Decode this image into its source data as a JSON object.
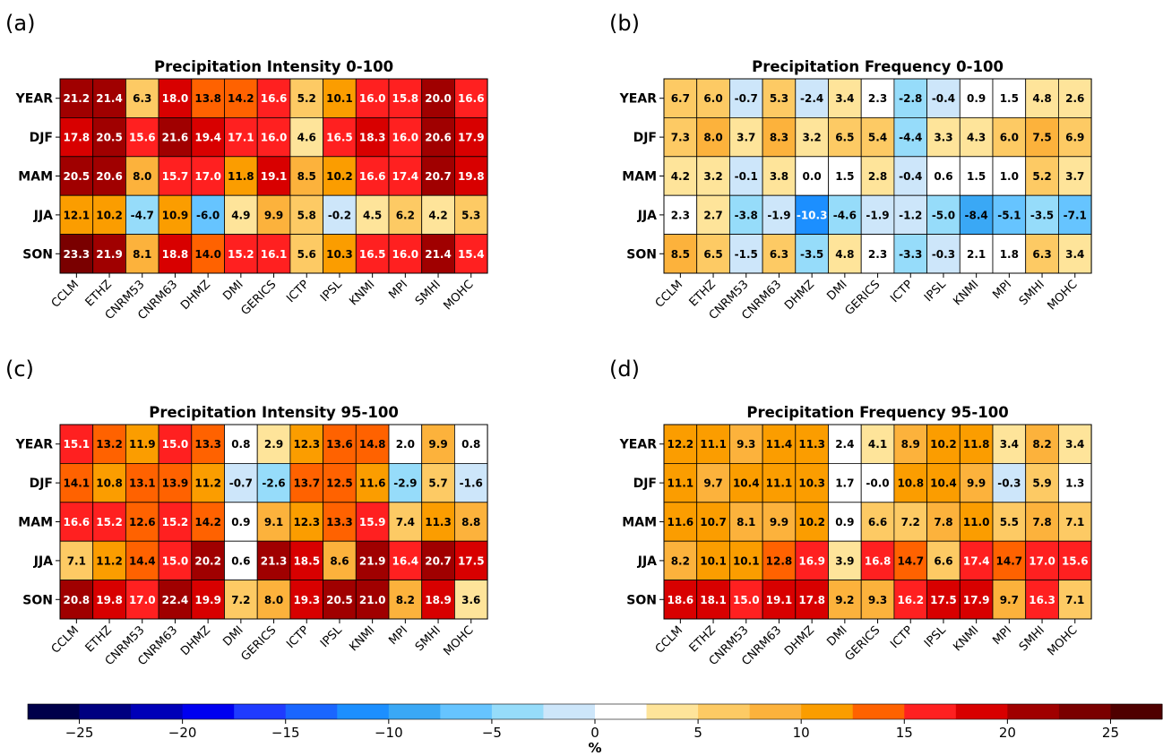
{
  "chart_data": [
    {
      "type": "heatmap",
      "panel_label": "(a)",
      "title": "Precipitation Intensity 0-100",
      "rows": [
        "YEAR",
        "DJF",
        "MAM",
        "JJA",
        "SON"
      ],
      "columns": [
        "CCLM",
        "ETHZ",
        "CNRM53",
        "CNRM63",
        "DHMZ",
        "DMI",
        "GERICS",
        "ICTP",
        "IPSL",
        "KNMI",
        "MPI",
        "SMHI",
        "MOHC"
      ],
      "values": [
        [
          "21.2",
          "21.4",
          "6.3",
          "18.0",
          "13.8",
          "14.2",
          "16.6",
          "5.2",
          "10.1",
          "16.0",
          "15.8",
          "20.0",
          "16.6"
        ],
        [
          "17.8",
          "20.5",
          "15.6",
          "21.6",
          "19.4",
          "17.1",
          "16.0",
          "4.6",
          "16.5",
          "18.3",
          "16.0",
          "20.6",
          "17.9"
        ],
        [
          "20.5",
          "20.6",
          "8.0",
          "15.7",
          "17.0",
          "11.8",
          "19.1",
          "8.5",
          "10.2",
          "16.6",
          "17.4",
          "20.7",
          "19.8"
        ],
        [
          "12.1",
          "10.2",
          "-4.7",
          "10.9",
          "-6.0",
          "4.9",
          "9.9",
          "5.8",
          "-0.2",
          "4.5",
          "6.2",
          "4.2",
          "5.3"
        ],
        [
          "23.3",
          "21.9",
          "8.1",
          "18.8",
          "14.0",
          "15.2",
          "16.1",
          "5.6",
          "10.3",
          "16.5",
          "16.0",
          "21.4",
          "15.4"
        ]
      ]
    },
    {
      "type": "heatmap",
      "panel_label": "(b)",
      "title": "Precipitation Frequency 0-100",
      "rows": [
        "YEAR",
        "DJF",
        "MAM",
        "JJA",
        "SON"
      ],
      "columns": [
        "CCLM",
        "ETHZ",
        "CNRM53",
        "CNRM63",
        "DHMZ",
        "DMI",
        "GERICS",
        "ICTP",
        "IPSL",
        "KNMI",
        "MPI",
        "SMHI",
        "MOHC"
      ],
      "values": [
        [
          "6.7",
          "6.0",
          "-0.7",
          "5.3",
          "-2.4",
          "3.4",
          "2.3",
          "-2.8",
          "-0.4",
          "0.9",
          "1.5",
          "4.8",
          "2.6"
        ],
        [
          "7.3",
          "8.0",
          "3.7",
          "8.3",
          "3.2",
          "6.5",
          "5.4",
          "-4.4",
          "3.3",
          "4.3",
          "6.0",
          "7.5",
          "6.9"
        ],
        [
          "4.2",
          "3.2",
          "-0.1",
          "3.8",
          "0.0",
          "1.5",
          "2.8",
          "-0.4",
          "0.6",
          "1.5",
          "1.0",
          "5.2",
          "3.7"
        ],
        [
          "2.3",
          "2.7",
          "-3.8",
          "-1.9",
          "-10.3",
          "-4.6",
          "-1.9",
          "-1.2",
          "-5.0",
          "-8.4",
          "-5.1",
          "-3.5",
          "-7.1"
        ],
        [
          "8.5",
          "6.5",
          "-1.5",
          "6.3",
          "-3.5",
          "4.8",
          "2.3",
          "-3.3",
          "-0.3",
          "2.1",
          "1.8",
          "6.3",
          "3.4"
        ]
      ]
    },
    {
      "type": "heatmap",
      "panel_label": "(c)",
      "title": "Precipitation Intensity 95-100",
      "rows": [
        "YEAR",
        "DJF",
        "MAM",
        "JJA",
        "SON"
      ],
      "columns": [
        "CCLM",
        "ETHZ",
        "CNRM53",
        "CNRM63",
        "DHMZ",
        "DMI",
        "GERICS",
        "ICTP",
        "IPSL",
        "KNMI",
        "MPI",
        "SMHI",
        "MOHC"
      ],
      "values": [
        [
          "15.1",
          "13.2",
          "11.9",
          "15.0",
          "13.3",
          "0.8",
          "2.9",
          "12.3",
          "13.6",
          "14.8",
          "2.0",
          "9.9",
          "0.8"
        ],
        [
          "14.1",
          "10.8",
          "13.1",
          "13.9",
          "11.2",
          "-0.7",
          "-2.6",
          "13.7",
          "12.5",
          "11.6",
          "-2.9",
          "5.7",
          "-1.6"
        ],
        [
          "16.6",
          "15.2",
          "12.6",
          "15.2",
          "14.2",
          "0.9",
          "9.1",
          "12.3",
          "13.3",
          "15.9",
          "7.4",
          "11.3",
          "8.8"
        ],
        [
          "7.1",
          "11.2",
          "14.4",
          "15.0",
          "20.2",
          "0.6",
          "21.3",
          "18.5",
          "8.6",
          "21.9",
          "16.4",
          "20.7",
          "17.5"
        ],
        [
          "20.8",
          "19.8",
          "17.0",
          "22.4",
          "19.9",
          "7.2",
          "8.0",
          "19.3",
          "20.5",
          "21.0",
          "8.2",
          "18.9",
          "3.6"
        ]
      ]
    },
    {
      "type": "heatmap",
      "panel_label": "(d)",
      "title": "Precipitation Frequency 95-100",
      "rows": [
        "YEAR",
        "DJF",
        "MAM",
        "JJA",
        "SON"
      ],
      "columns": [
        "CCLM",
        "ETHZ",
        "CNRM53",
        "CNRM63",
        "DHMZ",
        "DMI",
        "GERICS",
        "ICTP",
        "IPSL",
        "KNMI",
        "MPI",
        "SMHI",
        "MOHC"
      ],
      "values": [
        [
          "12.2",
          "11.1",
          "9.3",
          "11.4",
          "11.3",
          "2.4",
          "4.1",
          "8.9",
          "10.2",
          "11.8",
          "3.4",
          "8.2",
          "3.4"
        ],
        [
          "11.1",
          "9.7",
          "10.4",
          "11.1",
          "10.3",
          "1.7",
          "-0.0",
          "10.8",
          "10.4",
          "9.9",
          "-0.3",
          "5.9",
          "1.3"
        ],
        [
          "11.6",
          "10.7",
          "8.1",
          "9.9",
          "10.2",
          "0.9",
          "6.6",
          "7.2",
          "7.8",
          "11.0",
          "5.5",
          "7.8",
          "7.1"
        ],
        [
          "8.2",
          "10.1",
          "10.1",
          "12.8",
          "16.9",
          "3.9",
          "16.8",
          "14.7",
          "6.6",
          "17.4",
          "14.7",
          "17.0",
          "15.6"
        ],
        [
          "18.6",
          "18.1",
          "15.0",
          "19.1",
          "17.8",
          "9.2",
          "9.3",
          "16.2",
          "17.5",
          "17.9",
          "9.7",
          "16.3",
          "7.1"
        ]
      ]
    }
  ],
  "colorbar": {
    "label": "%",
    "range": [
      -27.5,
      27.5
    ],
    "step": 2.5,
    "ticks": [
      "−25",
      "−20",
      "−15",
      "−10",
      "−5",
      "0",
      "5",
      "10",
      "15",
      "20",
      "25"
    ],
    "tick_values": [
      -25,
      -20,
      -15,
      -10,
      -5,
      0,
      5,
      10,
      15,
      20,
      25
    ],
    "colors": [
      "#00004a",
      "#000080",
      "#0000b8",
      "#0000f0",
      "#1f3bff",
      "#1a66ff",
      "#1c8fff",
      "#3aa8f5",
      "#66c4ff",
      "#96dcfa",
      "#cde6fa",
      "#ffffff",
      "#fee49a",
      "#fdca64",
      "#fcb23c",
      "#fb9d00",
      "#ff6200",
      "#ff2020",
      "#d80000",
      "#a00000",
      "#7a0000",
      "#4f0000"
    ]
  }
}
